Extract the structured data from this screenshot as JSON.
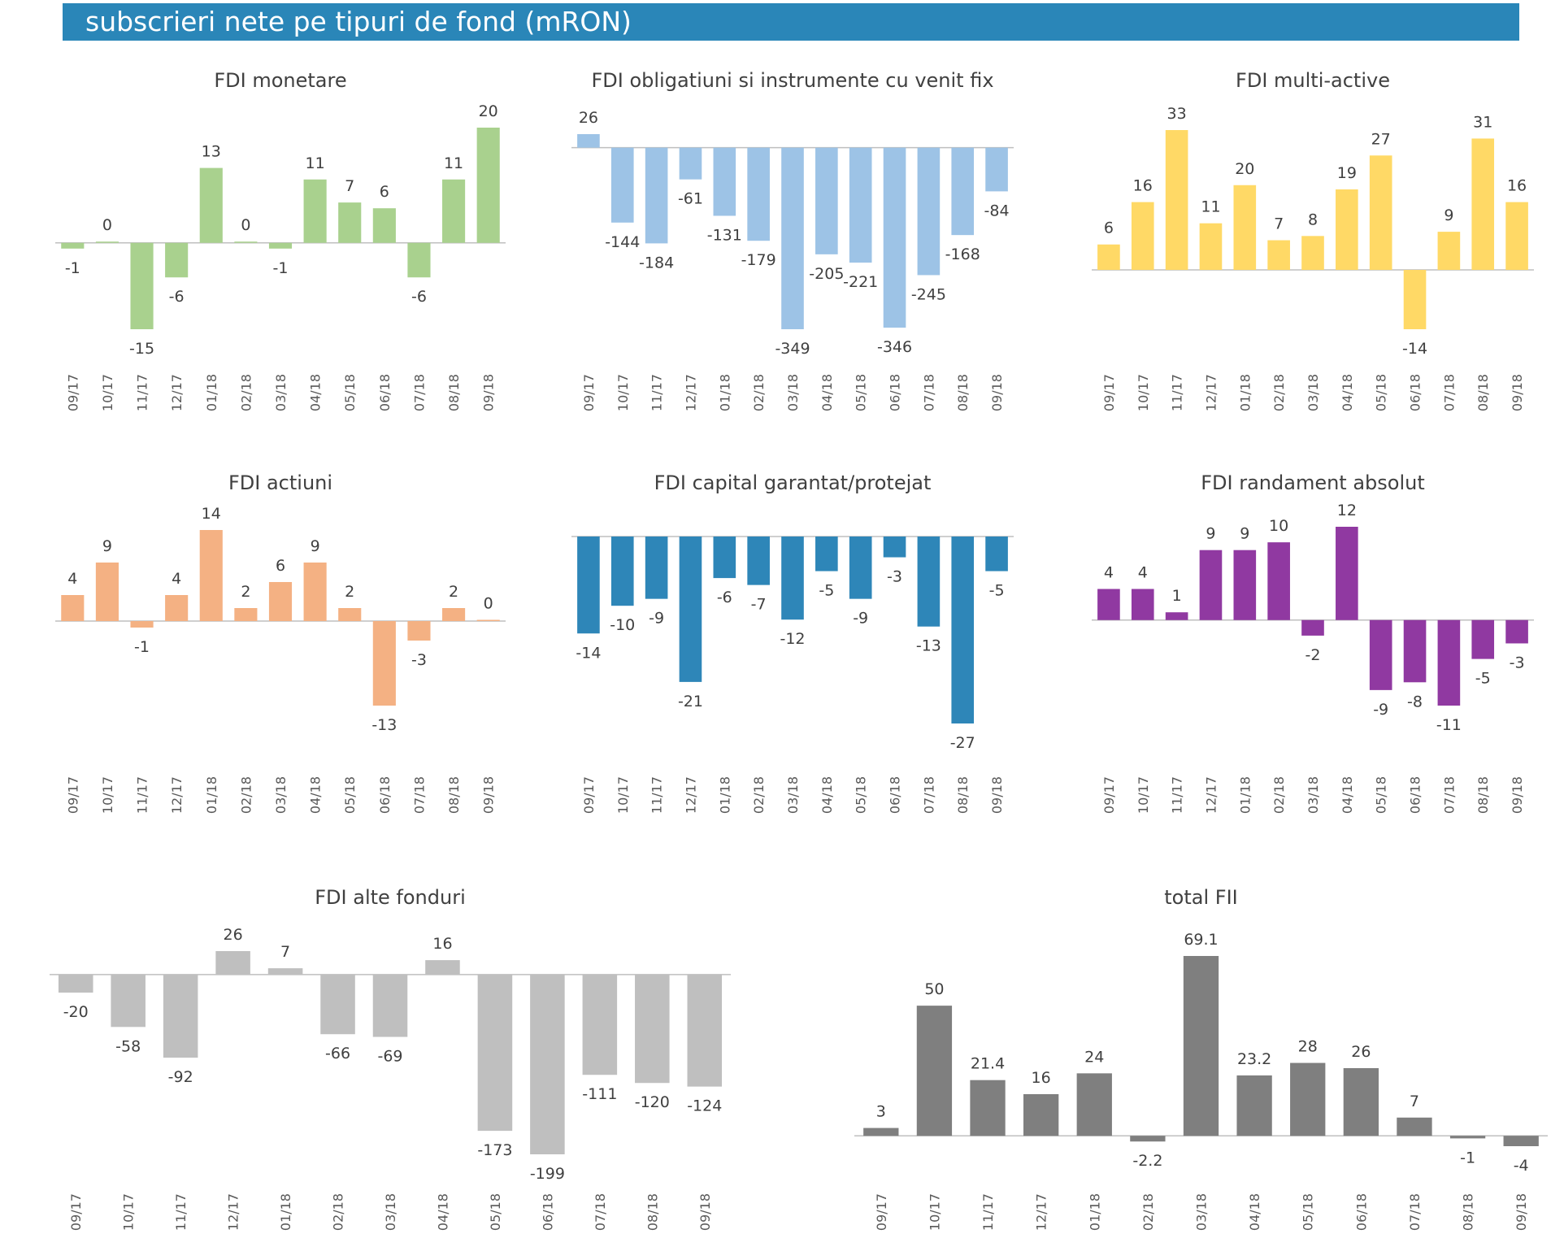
{
  "header": {
    "title": "subscrieri nete pe tipuri de fond (mRON)"
  },
  "chart_data": [
    {
      "id": "monetare",
      "type": "bar",
      "title": "FDI monetare",
      "color": "#a9d18e",
      "categories": [
        "09/17",
        "10/17",
        "11/17",
        "12/17",
        "01/18",
        "02/18",
        "03/18",
        "04/18",
        "05/18",
        "06/18",
        "07/18",
        "08/18",
        "09/18"
      ],
      "values": [
        -1,
        0,
        -15,
        -6,
        13,
        0,
        -1,
        11,
        7,
        6,
        -6,
        11,
        20
      ],
      "labels": [
        "-1",
        "0",
        "-15",
        "-6",
        "13",
        "0",
        "-1",
        "11",
        "7",
        "6",
        "-6",
        "11",
        "20"
      ]
    },
    {
      "id": "obligatiuni",
      "type": "bar",
      "title": "FDI obligatiuni si instrumente cu venit fix",
      "color": "#9dc3e6",
      "categories": [
        "09/17",
        "10/17",
        "11/17",
        "12/17",
        "01/18",
        "02/18",
        "03/18",
        "04/18",
        "05/18",
        "06/18",
        "07/18",
        "08/18",
        "09/18"
      ],
      "values": [
        26,
        -144,
        -184,
        -61,
        -131,
        -179,
        -349,
        -205,
        -221,
        -346,
        -245,
        -168,
        -84
      ],
      "labels": [
        "26",
        "-144",
        "-184",
        "-61",
        "-131",
        "-179",
        "-349",
        "-205",
        "-221",
        "-346",
        "-245",
        "-168",
        "-84"
      ]
    },
    {
      "id": "multiactive",
      "type": "bar",
      "title": "FDI multi-active",
      "color": "#ffd966",
      "categories": [
        "09/17",
        "10/17",
        "11/17",
        "12/17",
        "01/18",
        "02/18",
        "03/18",
        "04/18",
        "05/18",
        "06/18",
        "07/18",
        "08/18",
        "09/18"
      ],
      "values": [
        6,
        16,
        33,
        11,
        20,
        7,
        8,
        19,
        27,
        -14,
        9,
        31,
        16
      ],
      "labels": [
        "6",
        "16",
        "33",
        "11",
        "20",
        "7",
        "8",
        "19",
        "27",
        "-14",
        "9",
        "31",
        "16"
      ]
    },
    {
      "id": "actiuni",
      "type": "bar",
      "title": "FDI actiuni",
      "color": "#f4b183",
      "categories": [
        "09/17",
        "10/17",
        "11/17",
        "12/17",
        "01/18",
        "02/18",
        "03/18",
        "04/18",
        "05/18",
        "06/18",
        "07/18",
        "08/18",
        "09/18"
      ],
      "values": [
        4,
        9,
        -1,
        4,
        14,
        2,
        6,
        9,
        2,
        -13,
        -3,
        2,
        0
      ],
      "labels": [
        "4",
        "9",
        "-1",
        "4",
        "14",
        "2",
        "6",
        "9",
        "2",
        "-13",
        "-3",
        "2",
        "0"
      ]
    },
    {
      "id": "capital",
      "type": "bar",
      "title": "FDI capital garantat/protejat",
      "color": "#2e86b8",
      "categories": [
        "09/17",
        "10/17",
        "11/17",
        "12/17",
        "01/18",
        "02/18",
        "03/18",
        "04/18",
        "05/18",
        "06/18",
        "07/18",
        "08/18",
        "09/18"
      ],
      "values": [
        -14,
        -10,
        -9,
        -21,
        -6,
        -7,
        -12,
        -5,
        -9,
        -3,
        -13,
        -27,
        -5
      ],
      "labels": [
        "-14",
        "-10",
        "-9",
        "-21",
        "-6",
        "-7",
        "-12",
        "-5",
        "-9",
        "-3",
        "-13",
        "-27",
        "-5"
      ]
    },
    {
      "id": "randament",
      "type": "bar",
      "title": "FDI randament absolut",
      "color": "#9039a1",
      "categories": [
        "09/17",
        "10/17",
        "11/17",
        "12/17",
        "01/18",
        "02/18",
        "03/18",
        "04/18",
        "05/18",
        "06/18",
        "07/18",
        "08/18",
        "09/18"
      ],
      "values": [
        4,
        4,
        1,
        9,
        9,
        10,
        -2,
        12,
        -9,
        -8,
        -11,
        -5,
        -3
      ],
      "labels": [
        "4",
        "4",
        "1",
        "9",
        "9",
        "10",
        "-2",
        "12",
        "-9",
        "-8",
        "-11",
        "-5",
        "-3"
      ]
    },
    {
      "id": "alte",
      "type": "bar",
      "title": "FDI alte fonduri",
      "color": "#bfbfbf",
      "categories": [
        "09/17",
        "10/17",
        "11/17",
        "12/17",
        "01/18",
        "02/18",
        "03/18",
        "04/18",
        "05/18",
        "06/18",
        "07/18",
        "08/18",
        "09/18"
      ],
      "values": [
        -20,
        -58,
        -92,
        26,
        7,
        -66,
        -69,
        16,
        -173,
        -199,
        -111,
        -120,
        -124
      ],
      "labels": [
        "-20",
        "-58",
        "-92",
        "26",
        "7",
        "-66",
        "-69",
        "16",
        "-173",
        "-199",
        "-111",
        "-120",
        "-124"
      ]
    },
    {
      "id": "total",
      "type": "bar",
      "title": "total FII",
      "color": "#7f7f7f",
      "categories": [
        "09/17",
        "10/17",
        "11/17",
        "12/17",
        "01/18",
        "02/18",
        "03/18",
        "04/18",
        "05/18",
        "06/18",
        "07/18",
        "08/18",
        "09/18"
      ],
      "values": [
        3,
        50,
        21.4,
        16,
        24,
        -2.2,
        69.1,
        23.2,
        28,
        26,
        7,
        -1,
        -4
      ],
      "labels": [
        "3",
        "50",
        "21.4",
        "16",
        "24",
        "-2.2",
        "69.1",
        "23.2",
        "28",
        "26",
        "7",
        "-1",
        "-4"
      ]
    }
  ]
}
